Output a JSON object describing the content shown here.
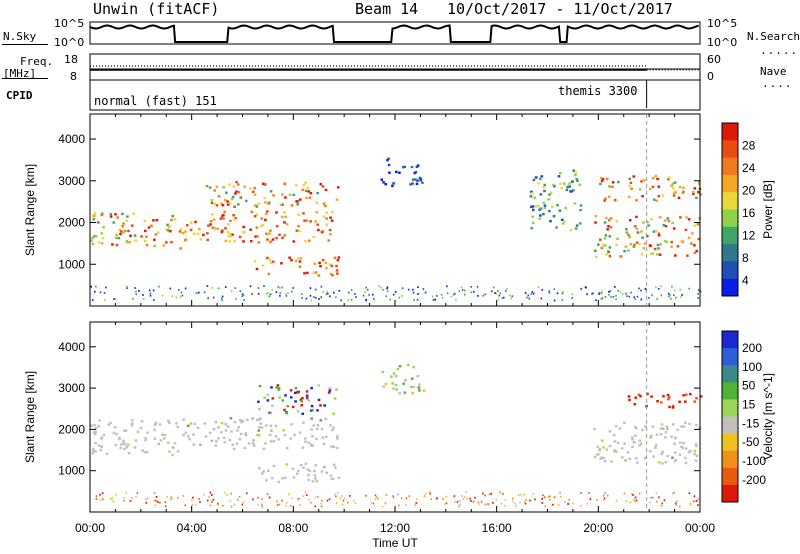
{
  "header": {
    "station": "Unwin (fitACF)",
    "beam": "Beam 14",
    "dates": "10/Oct/2017 - 11/Oct/2017"
  },
  "strip": {
    "nsky_label": "N.Sky",
    "nsky_ticks": [
      "10^5",
      "10^0"
    ],
    "nsearch_label": "N.Search",
    "nsearch_ticks": [
      "10^5",
      "10^0"
    ],
    "freq_label": "Freq.",
    "freq_unit": "[MHz]",
    "freq_ticks": [
      "18",
      "8"
    ],
    "nave_label": "Nave",
    "nave_ticks": [
      "60",
      "0"
    ],
    "cpid_label": "CPID",
    "cpid_left": "normal (fast) 151",
    "cpid_right": "themis 3300"
  },
  "chart_data": [
    {
      "type": "heatmap",
      "name": "power",
      "ylabel": "Slant Range [km]",
      "yticks": [
        "4000",
        "3000",
        "2000",
        "1000"
      ],
      "ylim": [
        0,
        4600
      ],
      "xlim_hours": [
        0,
        24
      ],
      "colorbar": {
        "title": "Power [dB]",
        "ticks": [
          "28",
          "24",
          "20",
          "16",
          "12",
          "8",
          "4"
        ],
        "colors": [
          "#0a1ee6",
          "#1e4fb4",
          "#2e7a8c",
          "#3fa66a",
          "#8ed24a",
          "#e8d83a",
          "#f5a623",
          "#f07a1c",
          "#e84c12",
          "#dd1a0a"
        ]
      },
      "regions": [
        {
          "t0": 0.0,
          "t1": 3.6,
          "r0": 1400,
          "r1": 2250,
          "level": "high"
        },
        {
          "t0": 3.6,
          "t1": 9.7,
          "r0": 1550,
          "r1": 2300,
          "level": "very-high"
        },
        {
          "t0": 4.5,
          "t1": 9.8,
          "r0": 2400,
          "r1": 3000,
          "level": "high"
        },
        {
          "t0": 6.4,
          "t1": 9.8,
          "r0": 750,
          "r1": 1200,
          "level": "very-high"
        },
        {
          "t0": 11.4,
          "t1": 13.1,
          "r0": 2900,
          "r1": 3600,
          "level": "low"
        },
        {
          "t0": 19.8,
          "t1": 24.0,
          "r0": 1200,
          "r1": 2200,
          "level": "high"
        },
        {
          "t0": 20.0,
          "t1": 24.0,
          "r0": 2550,
          "r1": 3150,
          "level": "high"
        },
        {
          "t0": 17.3,
          "t1": 19.3,
          "r0": 1800,
          "r1": 3300,
          "level": "mid"
        }
      ]
    },
    {
      "type": "heatmap",
      "name": "velocity",
      "ylabel": "Slant Range [km]",
      "yticks": [
        "4000",
        "3000",
        "2000",
        "1000"
      ],
      "ylim": [
        0,
        4600
      ],
      "xlim_hours": [
        0,
        24
      ],
      "xticks": [
        "00:00",
        "04:00",
        "08:00",
        "12:00",
        "16:00",
        "20:00",
        "00:00"
      ],
      "xlabel": "Time UT",
      "colorbar": {
        "title": "Velocity [m s^-1]",
        "ticks": [
          "200",
          "100",
          "50",
          "15",
          "-15",
          "-50",
          "-100",
          "-200"
        ],
        "colors": [
          "#1a2ad0",
          "#2e5fd8",
          "#3a8a8c",
          "#4fb33a",
          "#9cd35a",
          "#c0c0c0",
          "#f0c020",
          "#f09018",
          "#e85a10",
          "#dd1a0a"
        ]
      },
      "regions": [
        {
          "t0": 0.0,
          "t1": 3.6,
          "r0": 1400,
          "r1": 2250,
          "level": "ground"
        },
        {
          "t0": 3.6,
          "t1": 9.7,
          "r0": 1550,
          "r1": 2300,
          "level": "ground"
        },
        {
          "t0": 6.4,
          "t1": 9.8,
          "r0": 750,
          "r1": 1200,
          "level": "ground"
        },
        {
          "t0": 6.5,
          "t1": 9.8,
          "r0": 2400,
          "r1": 3100,
          "level": "mixed"
        },
        {
          "t0": 11.4,
          "t1": 13.1,
          "r0": 2900,
          "r1": 3600,
          "level": "mixed-light"
        },
        {
          "t0": 19.8,
          "t1": 24.0,
          "r0": 1200,
          "r1": 2200,
          "level": "ground"
        },
        {
          "t0": 21.0,
          "t1": 24.0,
          "r0": 2550,
          "r1": 2900,
          "level": "neg"
        }
      ]
    }
  ]
}
